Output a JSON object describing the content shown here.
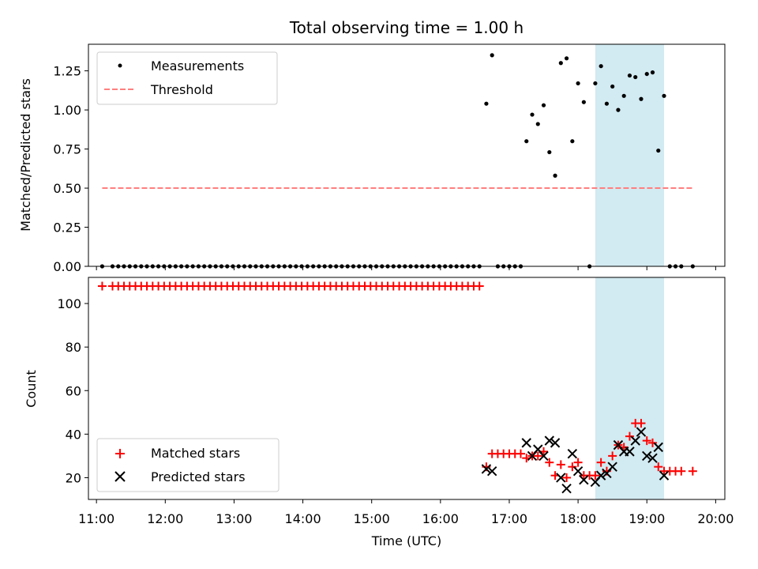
{
  "chart_data": [
    {
      "type": "scatter",
      "title": "Total observing time = 1.00 h",
      "ylabel": "Matched/Predicted stars",
      "ylim": [
        0,
        1.42
      ],
      "xlim": [
        "10:53",
        "20:08"
      ],
      "yticks": [
        0.0,
        0.25,
        0.5,
        0.75,
        1.0,
        1.25
      ],
      "ytick_labels": [
        "0.00",
        "0.25",
        "0.50",
        "0.75",
        "1.00",
        "1.25"
      ],
      "legend_position": "upper-left",
      "highlight_span": [
        "18:15",
        "19:15"
      ],
      "colors": {
        "measurements": "#000000",
        "threshold": "#ff7f7f",
        "highlight": "#add8e6"
      },
      "series": [
        {
          "name": "Measurements",
          "style": "dot",
          "points": [
            [
              "11:05",
              0
            ],
            [
              "11:14",
              0
            ],
            [
              "11:19",
              0
            ],
            [
              "11:24",
              0
            ],
            [
              "11:29",
              0
            ],
            [
              "11:34",
              0
            ],
            [
              "11:39",
              0
            ],
            [
              "11:44",
              0
            ],
            [
              "11:49",
              0
            ],
            [
              "11:54",
              0
            ],
            [
              "11:59",
              0
            ],
            [
              "12:04",
              0
            ],
            [
              "12:09",
              0
            ],
            [
              "12:14",
              0
            ],
            [
              "12:19",
              0
            ],
            [
              "12:24",
              0
            ],
            [
              "12:29",
              0
            ],
            [
              "12:34",
              0
            ],
            [
              "12:39",
              0
            ],
            [
              "12:44",
              0
            ],
            [
              "12:49",
              0
            ],
            [
              "12:54",
              0
            ],
            [
              "12:59",
              0
            ],
            [
              "13:04",
              0
            ],
            [
              "13:09",
              0
            ],
            [
              "13:14",
              0
            ],
            [
              "13:19",
              0
            ],
            [
              "13:24",
              0
            ],
            [
              "13:29",
              0
            ],
            [
              "13:34",
              0
            ],
            [
              "13:39",
              0
            ],
            [
              "13:44",
              0
            ],
            [
              "13:49",
              0
            ],
            [
              "13:54",
              0
            ],
            [
              "13:59",
              0
            ],
            [
              "14:04",
              0
            ],
            [
              "14:09",
              0
            ],
            [
              "14:14",
              0
            ],
            [
              "14:19",
              0
            ],
            [
              "14:24",
              0
            ],
            [
              "14:29",
              0
            ],
            [
              "14:34",
              0
            ],
            [
              "14:39",
              0
            ],
            [
              "14:44",
              0
            ],
            [
              "14:49",
              0
            ],
            [
              "14:54",
              0
            ],
            [
              "14:59",
              0
            ],
            [
              "15:04",
              0
            ],
            [
              "15:09",
              0
            ],
            [
              "15:14",
              0
            ],
            [
              "15:19",
              0
            ],
            [
              "15:24",
              0
            ],
            [
              "15:29",
              0
            ],
            [
              "15:34",
              0
            ],
            [
              "15:39",
              0
            ],
            [
              "15:44",
              0
            ],
            [
              "15:49",
              0
            ],
            [
              "15:54",
              0
            ],
            [
              "15:59",
              0
            ],
            [
              "16:04",
              0
            ],
            [
              "16:09",
              0
            ],
            [
              "16:14",
              0
            ],
            [
              "16:19",
              0
            ],
            [
              "16:24",
              0
            ],
            [
              "16:29",
              0
            ],
            [
              "16:34",
              0
            ],
            [
              "16:40",
              1.04
            ],
            [
              "16:45",
              1.35
            ],
            [
              "16:50",
              0
            ],
            [
              "16:55",
              0
            ],
            [
              "17:00",
              0
            ],
            [
              "17:05",
              0
            ],
            [
              "17:10",
              0
            ],
            [
              "17:15",
              0.8
            ],
            [
              "17:20",
              0.97
            ],
            [
              "17:25",
              0.91
            ],
            [
              "17:30",
              1.03
            ],
            [
              "17:35",
              0.73
            ],
            [
              "17:40",
              0.58
            ],
            [
              "17:45",
              1.3
            ],
            [
              "17:50",
              1.33
            ],
            [
              "17:55",
              0.8
            ],
            [
              "18:00",
              1.17
            ],
            [
              "18:05",
              1.05
            ],
            [
              "18:10",
              0
            ],
            [
              "18:15",
              1.17
            ],
            [
              "18:20",
              1.28
            ],
            [
              "18:25",
              1.04
            ],
            [
              "18:30",
              1.15
            ],
            [
              "18:35",
              1.0
            ],
            [
              "18:40",
              1.09
            ],
            [
              "18:45",
              1.22
            ],
            [
              "18:50",
              1.21
            ],
            [
              "18:55",
              1.07
            ],
            [
              "19:00",
              1.23
            ],
            [
              "19:05",
              1.24
            ],
            [
              "19:10",
              0.74
            ],
            [
              "19:15",
              1.09
            ],
            [
              "19:20",
              0
            ],
            [
              "19:25",
              0
            ],
            [
              "19:30",
              0
            ],
            [
              "19:40",
              0
            ]
          ]
        },
        {
          "name": "Threshold",
          "style": "dashed-line",
          "points": [
            [
              "11:05",
              0.5
            ],
            [
              "19:40",
              0.5
            ]
          ]
        }
      ]
    },
    {
      "type": "scatter",
      "xlabel": "Time (UTC)",
      "ylabel": "Count",
      "ylim": [
        10,
        112
      ],
      "xlim": [
        "10:53",
        "20:08"
      ],
      "yticks": [
        20,
        40,
        60,
        80,
        100
      ],
      "ytick_labels": [
        "20",
        "40",
        "60",
        "80",
        "100"
      ],
      "xticks": [
        "11:00",
        "12:00",
        "13:00",
        "14:00",
        "15:00",
        "16:00",
        "17:00",
        "18:00",
        "19:00",
        "20:00"
      ],
      "legend_position": "lower-left",
      "highlight_span": [
        "18:15",
        "19:15"
      ],
      "colors": {
        "matched": "#ff0000",
        "predicted": "#000000",
        "highlight": "#add8e6"
      },
      "series": [
        {
          "name": "Matched stars",
          "style": "plus",
          "points": [
            [
              "11:05",
              108
            ],
            [
              "11:14",
              108
            ],
            [
              "11:19",
              108
            ],
            [
              "11:24",
              108
            ],
            [
              "11:29",
              108
            ],
            [
              "11:34",
              108
            ],
            [
              "11:39",
              108
            ],
            [
              "11:44",
              108
            ],
            [
              "11:49",
              108
            ],
            [
              "11:54",
              108
            ],
            [
              "11:59",
              108
            ],
            [
              "12:04",
              108
            ],
            [
              "12:09",
              108
            ],
            [
              "12:14",
              108
            ],
            [
              "12:19",
              108
            ],
            [
              "12:24",
              108
            ],
            [
              "12:29",
              108
            ],
            [
              "12:34",
              108
            ],
            [
              "12:39",
              108
            ],
            [
              "12:44",
              108
            ],
            [
              "12:49",
              108
            ],
            [
              "12:54",
              108
            ],
            [
              "12:59",
              108
            ],
            [
              "13:04",
              108
            ],
            [
              "13:09",
              108
            ],
            [
              "13:14",
              108
            ],
            [
              "13:19",
              108
            ],
            [
              "13:24",
              108
            ],
            [
              "13:29",
              108
            ],
            [
              "13:34",
              108
            ],
            [
              "13:39",
              108
            ],
            [
              "13:44",
              108
            ],
            [
              "13:49",
              108
            ],
            [
              "13:54",
              108
            ],
            [
              "13:59",
              108
            ],
            [
              "14:04",
              108
            ],
            [
              "14:09",
              108
            ],
            [
              "14:14",
              108
            ],
            [
              "14:19",
              108
            ],
            [
              "14:24",
              108
            ],
            [
              "14:29",
              108
            ],
            [
              "14:34",
              108
            ],
            [
              "14:39",
              108
            ],
            [
              "14:44",
              108
            ],
            [
              "14:49",
              108
            ],
            [
              "14:54",
              108
            ],
            [
              "14:59",
              108
            ],
            [
              "15:04",
              108
            ],
            [
              "15:09",
              108
            ],
            [
              "15:14",
              108
            ],
            [
              "15:19",
              108
            ],
            [
              "15:24",
              108
            ],
            [
              "15:29",
              108
            ],
            [
              "15:34",
              108
            ],
            [
              "15:39",
              108
            ],
            [
              "15:44",
              108
            ],
            [
              "15:49",
              108
            ],
            [
              "15:54",
              108
            ],
            [
              "15:59",
              108
            ],
            [
              "16:04",
              108
            ],
            [
              "16:09",
              108
            ],
            [
              "16:14",
              108
            ],
            [
              "16:19",
              108
            ],
            [
              "16:24",
              108
            ],
            [
              "16:29",
              108
            ],
            [
              "16:34",
              108
            ],
            [
              "16:40",
              25
            ],
            [
              "16:45",
              31
            ],
            [
              "16:50",
              31
            ],
            [
              "16:55",
              31
            ],
            [
              "17:00",
              31
            ],
            [
              "17:05",
              31
            ],
            [
              "17:10",
              31
            ],
            [
              "17:15",
              29
            ],
            [
              "17:20",
              30
            ],
            [
              "17:25",
              30
            ],
            [
              "17:30",
              32
            ],
            [
              "17:35",
              27
            ],
            [
              "17:40",
              21
            ],
            [
              "17:45",
              26
            ],
            [
              "17:50",
              20
            ],
            [
              "17:55",
              25
            ],
            [
              "18:00",
              27
            ],
            [
              "18:05",
              21
            ],
            [
              "18:10",
              21
            ],
            [
              "18:15",
              21
            ],
            [
              "18:20",
              27
            ],
            [
              "18:25",
              23
            ],
            [
              "18:30",
              30
            ],
            [
              "18:35",
              35
            ],
            [
              "18:40",
              34
            ],
            [
              "18:45",
              39
            ],
            [
              "18:50",
              45
            ],
            [
              "18:55",
              45
            ],
            [
              "19:00",
              37
            ],
            [
              "19:05",
              36
            ],
            [
              "19:10",
              25
            ],
            [
              "19:15",
              23
            ],
            [
              "19:20",
              23
            ],
            [
              "19:25",
              23
            ],
            [
              "19:30",
              23
            ],
            [
              "19:40",
              23
            ]
          ]
        },
        {
          "name": "Predicted stars",
          "style": "x",
          "points": [
            [
              "16:40",
              24
            ],
            [
              "16:45",
              23
            ],
            [
              "17:15",
              36
            ],
            [
              "17:20",
              30
            ],
            [
              "17:25",
              33
            ],
            [
              "17:30",
              30
            ],
            [
              "17:35",
              37
            ],
            [
              "17:40",
              36
            ],
            [
              "17:45",
              20
            ],
            [
              "17:50",
              15
            ],
            [
              "17:55",
              31
            ],
            [
              "18:00",
              23
            ],
            [
              "18:05",
              19
            ],
            [
              "18:15",
              18
            ],
            [
              "18:20",
              21
            ],
            [
              "18:25",
              22
            ],
            [
              "18:30",
              25
            ],
            [
              "18:35",
              35
            ],
            [
              "18:40",
              32
            ],
            [
              "18:45",
              32
            ],
            [
              "18:50",
              37
            ],
            [
              "18:55",
              41
            ],
            [
              "19:00",
              30
            ],
            [
              "19:05",
              29
            ],
            [
              "19:10",
              34
            ],
            [
              "19:15",
              21
            ]
          ]
        }
      ]
    }
  ]
}
